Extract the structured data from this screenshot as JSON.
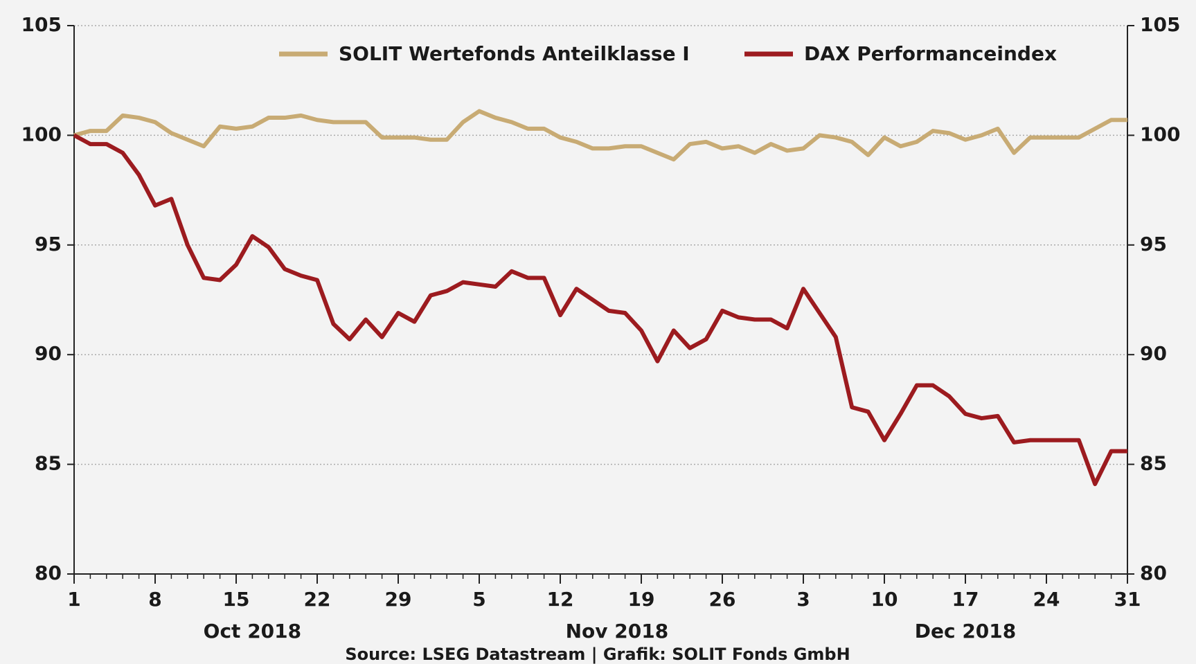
{
  "chart_data": {
    "type": "line",
    "source": "Source: LSEG Datastream | Grafik: SOLIT Fonds GmbH",
    "x": [
      "2018-10-01",
      "2018-10-02",
      "2018-10-03",
      "2018-10-04",
      "2018-10-05",
      "2018-10-08",
      "2018-10-09",
      "2018-10-10",
      "2018-10-11",
      "2018-10-12",
      "2018-10-15",
      "2018-10-16",
      "2018-10-17",
      "2018-10-18",
      "2018-10-19",
      "2018-10-22",
      "2018-10-23",
      "2018-10-24",
      "2018-10-25",
      "2018-10-26",
      "2018-10-29",
      "2018-10-30",
      "2018-10-31",
      "2018-11-01",
      "2018-11-02",
      "2018-11-05",
      "2018-11-06",
      "2018-11-07",
      "2018-11-08",
      "2018-11-09",
      "2018-11-12",
      "2018-11-13",
      "2018-11-14",
      "2018-11-15",
      "2018-11-16",
      "2018-11-19",
      "2018-11-20",
      "2018-11-21",
      "2018-11-22",
      "2018-11-23",
      "2018-11-26",
      "2018-11-27",
      "2018-11-28",
      "2018-11-29",
      "2018-11-30",
      "2018-12-03",
      "2018-12-04",
      "2018-12-05",
      "2018-12-06",
      "2018-12-07",
      "2018-12-10",
      "2018-12-11",
      "2018-12-12",
      "2018-12-13",
      "2018-12-14",
      "2018-12-17",
      "2018-12-18",
      "2018-12-19",
      "2018-12-20",
      "2018-12-21",
      "2018-12-24",
      "2018-12-25",
      "2018-12-26",
      "2018-12-27",
      "2018-12-28",
      "2018-12-31"
    ],
    "xticks": [
      {
        "value": "2018-10-01",
        "label": "1"
      },
      {
        "value": "2018-10-08",
        "label": "8"
      },
      {
        "value": "2018-10-15",
        "label": "15"
      },
      {
        "value": "2018-10-22",
        "label": "22"
      },
      {
        "value": "2018-10-29",
        "label": "29"
      },
      {
        "value": "2018-11-05",
        "label": "5"
      },
      {
        "value": "2018-11-12",
        "label": "12"
      },
      {
        "value": "2018-11-19",
        "label": "19"
      },
      {
        "value": "2018-11-26",
        "label": "26"
      },
      {
        "value": "2018-12-03",
        "label": "3"
      },
      {
        "value": "2018-12-10",
        "label": "10"
      },
      {
        "value": "2018-12-17",
        "label": "17"
      },
      {
        "value": "2018-12-24",
        "label": "24"
      },
      {
        "value": "2018-12-31",
        "label": "31"
      }
    ],
    "month_labels": [
      {
        "value": "2018-10",
        "label": "Oct 2018"
      },
      {
        "value": "2018-11",
        "label": "Nov 2018"
      },
      {
        "value": "2018-12",
        "label": "Dec 2018"
      }
    ],
    "ylim": [
      80,
      105
    ],
    "yticks": [
      80,
      85,
      90,
      95,
      100,
      105
    ],
    "y2lim": [
      80,
      105
    ],
    "y2ticks": [
      80,
      85,
      90,
      95,
      100,
      105
    ],
    "grid": true,
    "series": [
      {
        "name": "SOLIT Wertefonds Anteilklasse I",
        "color": "#c8ab74",
        "values": [
          100,
          100.2,
          100.2,
          100.9,
          100.8,
          100.6,
          100.1,
          99.8,
          99.5,
          100.4,
          100.3,
          100.4,
          100.8,
          100.8,
          100.9,
          100.7,
          100.6,
          100.6,
          100.6,
          99.9,
          99.9,
          99.9,
          99.8,
          99.8,
          100.6,
          101.1,
          100.8,
          100.6,
          100.3,
          100.3,
          99.9,
          99.7,
          99.4,
          99.4,
          99.5,
          99.5,
          99.2,
          98.9,
          99.6,
          99.7,
          99.4,
          99.5,
          99.2,
          99.6,
          99.3,
          99.4,
          100.0,
          99.9,
          99.7,
          99.1,
          99.9,
          99.5,
          99.7,
          100.2,
          100.1,
          99.8,
          100.0,
          100.3,
          99.2,
          99.9,
          99.9,
          99.9,
          99.9,
          100.3,
          100.7,
          100.7
        ]
      },
      {
        "name": "DAX Performanceindex",
        "color": "#9c1b1f",
        "values": [
          100,
          99.6,
          99.6,
          99.2,
          98.2,
          96.8,
          97.1,
          95.0,
          93.5,
          93.4,
          94.1,
          95.4,
          94.9,
          93.9,
          93.6,
          93.4,
          91.4,
          90.7,
          91.6,
          90.8,
          91.9,
          91.5,
          92.7,
          92.9,
          93.3,
          93.2,
          93.1,
          93.8,
          93.5,
          93.5,
          91.8,
          93.0,
          92.5,
          92.0,
          91.9,
          91.1,
          89.7,
          91.1,
          90.3,
          90.7,
          92.0,
          91.7,
          91.6,
          91.6,
          91.2,
          93.0,
          91.9,
          90.8,
          87.6,
          87.4,
          86.1,
          87.3,
          88.6,
          88.6,
          88.1,
          87.3,
          87.1,
          87.2,
          86.0,
          86.1,
          86.1,
          86.1,
          86.1,
          84.1,
          85.6,
          85.6
        ]
      }
    ]
  }
}
